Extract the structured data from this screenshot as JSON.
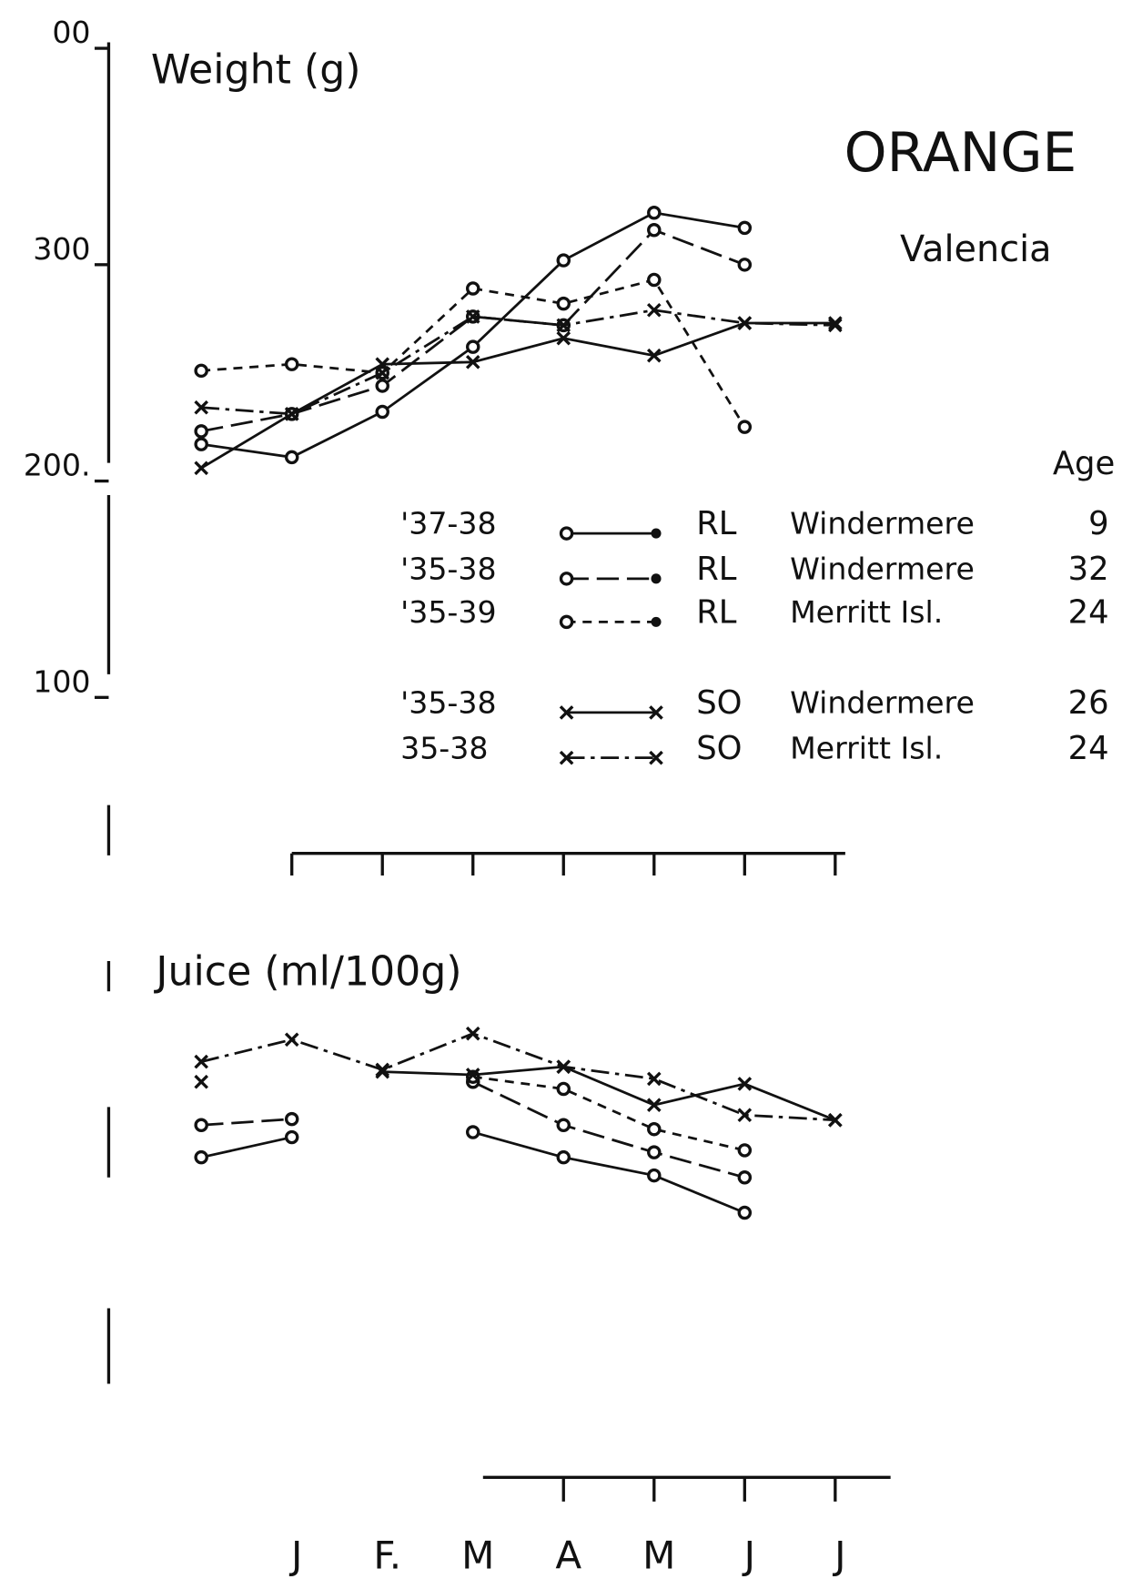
{
  "chart_data": [
    {
      "type": "line",
      "title": "ORANGE",
      "subtitle": "Valencia",
      "y_label": "Weight (g)",
      "ylim": [
        100,
        400
      ],
      "yticks": [
        {
          "value": 400,
          "label": "00"
        },
        300,
        {
          "value": 200,
          "label": "200."
        },
        100
      ],
      "legend_header": "Age",
      "series": [
        {
          "period": "'37-38",
          "stock": "RL",
          "location": "Windermere",
          "age": 9,
          "color": "#111",
          "style": "solid",
          "marker": "circle",
          "values": [
            217,
            211,
            232,
            262,
            302,
            324,
            317,
            null
          ]
        },
        {
          "period": "'35-38",
          "stock": "RL",
          "location": "Windermere",
          "age": 32,
          "color": "#111",
          "style": "longdash",
          "marker": "circle",
          "values": [
            223,
            231,
            244,
            276,
            272,
            316,
            300,
            null
          ]
        },
        {
          "period": "'35-39",
          "stock": "RL",
          "location": "Merritt Isl.",
          "age": 24,
          "color": "#111",
          "style": "shortdash",
          "marker": "circle",
          "values": [
            251,
            254,
            250,
            289,
            282,
            293,
            225,
            null
          ]
        },
        {
          "period": "'35-38",
          "stock": "SO",
          "location": "Windermere",
          "age": 26,
          "color": "#111",
          "style": "solid",
          "marker": "x",
          "values": [
            206,
            231,
            254,
            255,
            266,
            258,
            273,
            273
          ]
        },
        {
          "period": "35-38",
          "stock": "SO",
          "location": "Merritt Isl.",
          "age": 24,
          "color": "#111",
          "style": "dashdot",
          "marker": "x",
          "values": [
            234,
            231,
            250,
            276,
            272,
            279,
            273,
            272
          ]
        }
      ]
    },
    {
      "type": "line",
      "y_label": "Juice (ml/100g)",
      "ylim": [
        25,
        62
      ],
      "categories": [
        null,
        "J",
        "F.",
        "M",
        "A",
        "M",
        "J",
        "J"
      ],
      "series": [
        {
          "color": "#111",
          "style": "solid",
          "marker": "circle",
          "values": [
            47,
            49,
            null,
            49.5,
            47,
            45.2,
            41.5,
            null
          ]
        },
        {
          "color": "#111",
          "style": "longdash",
          "marker": "circle",
          "values": [
            50.2,
            50.8,
            null,
            54.5,
            50.2,
            47.5,
            45,
            null
          ]
        },
        {
          "color": "#111",
          "style": "shortdash",
          "marker": "circle",
          "values": [
            null,
            null,
            null,
            55,
            53.8,
            49.8,
            47.7,
            null
          ]
        },
        {
          "color": "#111",
          "style": "solid",
          "marker": "x",
          "values": [
            54.5,
            null,
            55.5,
            55.2,
            56,
            52.2,
            54.3,
            50.7
          ]
        },
        {
          "color": "#111",
          "style": "dashdot",
          "marker": "x",
          "values": [
            56.5,
            58.7,
            55.7,
            59.3,
            56,
            54.8,
            51.2,
            50.7
          ]
        }
      ]
    }
  ]
}
